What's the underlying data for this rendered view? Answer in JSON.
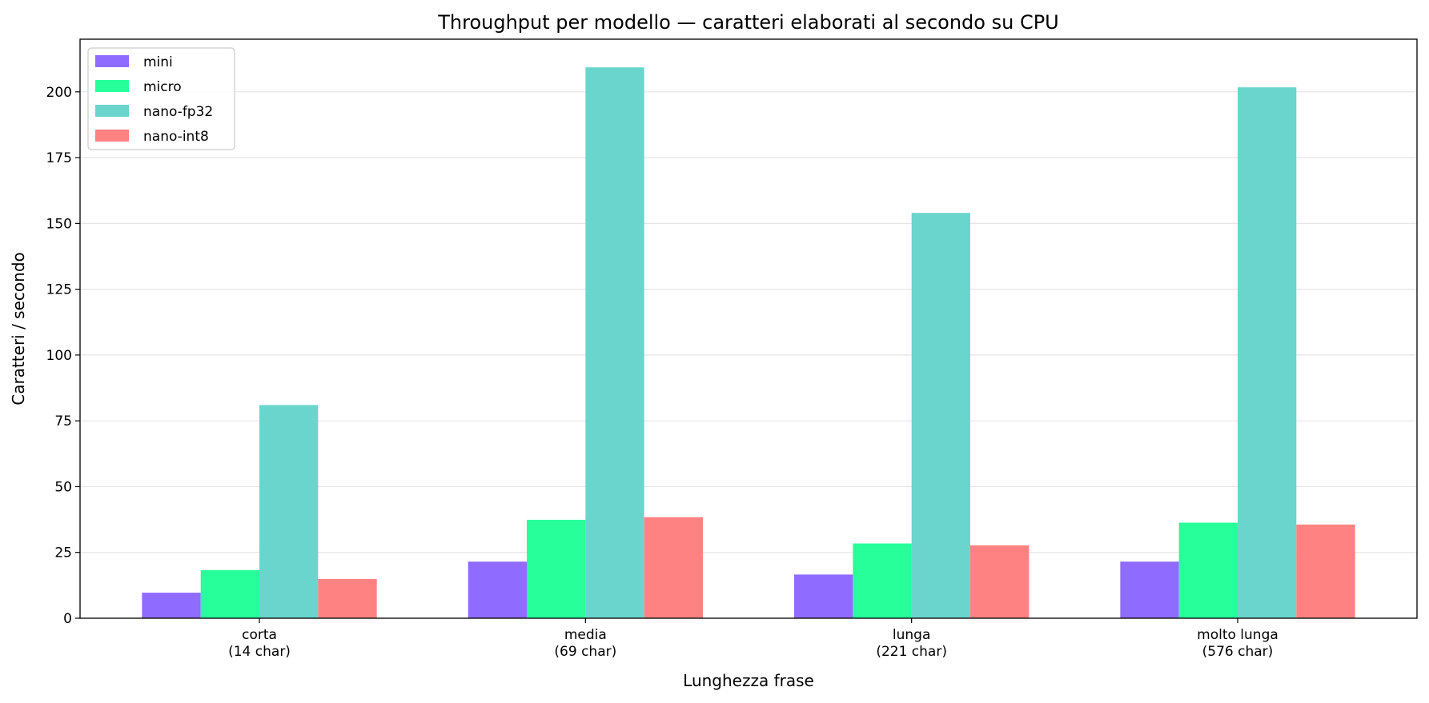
{
  "chart_data": {
    "type": "bar",
    "title": "Throughput per modello — caratteri elaborati al secondo su CPU",
    "xlabel": "Lunghezza frase",
    "ylabel": "Caratteri / secondo",
    "categories": [
      "corta\n(14 char)",
      "media\n(69 char)",
      "lunga\n(221 char)",
      "molto lunga\n(576 char)"
    ],
    "ylim": [
      0,
      220
    ],
    "yticks": [
      0,
      25,
      50,
      75,
      100,
      125,
      150,
      175,
      200
    ],
    "grid": "horizontal",
    "legend_position": "top-left",
    "series": [
      {
        "name": "mini",
        "color": "#8f6bff",
        "values": [
          9.7,
          21.5,
          16.6,
          21.5
        ]
      },
      {
        "name": "micro",
        "color": "#27ff9b",
        "values": [
          18.3,
          37.4,
          28.4,
          36.3
        ]
      },
      {
        "name": "nano-fp32",
        "color": "#6ad5cc",
        "values": [
          81.0,
          209.3,
          154.0,
          201.7
        ]
      },
      {
        "name": "nano-int8",
        "color": "#ff8282",
        "values": [
          14.9,
          38.4,
          27.7,
          35.6
        ]
      }
    ]
  }
}
